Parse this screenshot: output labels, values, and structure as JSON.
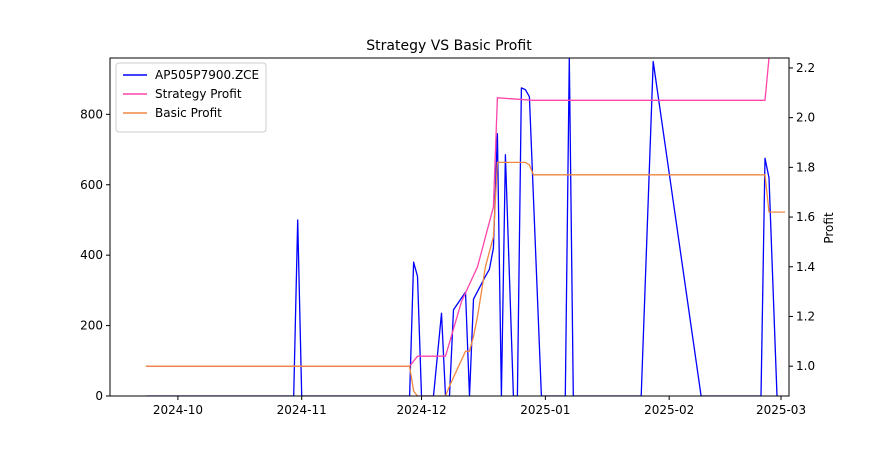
{
  "chart_data": {
    "type": "line",
    "title": "Strategy VS Basic Profit",
    "xlabel": "",
    "ylabel_left": "",
    "ylabel_right": "Profit",
    "x_ticks": [
      "2024-10",
      "2024-11",
      "2024-12",
      "2025-01",
      "2025-02",
      "2025-03"
    ],
    "x_tick_dates": [
      "2024-10-01",
      "2024-11-01",
      "2024-12-01",
      "2025-01-01",
      "2025-02-01",
      "2025-03-01"
    ],
    "xlim": [
      "2024-09-14",
      "2025-03-03"
    ],
    "y_left_ticks": [
      "0",
      "200",
      "400",
      "600",
      "800"
    ],
    "y_left_lim": [
      0,
      960
    ],
    "y_right_ticks": [
      "1.0",
      "1.2",
      "1.4",
      "1.6",
      "1.8",
      "2.0",
      "2.2"
    ],
    "y_right_lim": [
      0.88,
      2.24
    ],
    "grid": false,
    "legend_position": "top-left",
    "colors": {
      "AP505P7900.ZCE": "#0000ff",
      "Strategy Profit": "#ff44aa",
      "Basic Profit": "#f08840"
    },
    "series": [
      {
        "name": "AP505P7900.ZCE",
        "axis": "left",
        "color": "#0000ff",
        "x": [
          "2024-09-23",
          "2024-10-30",
          "2024-10-31",
          "2024-11-01",
          "2024-11-28",
          "2024-11-29",
          "2024-11-30",
          "2024-12-01",
          "2024-12-04",
          "2024-12-06",
          "2024-12-07",
          "2024-12-08",
          "2024-12-09",
          "2024-12-12",
          "2024-12-13",
          "2024-12-14",
          "2024-12-17",
          "2024-12-18",
          "2024-12-19",
          "2024-12-20",
          "2024-12-21",
          "2024-12-22",
          "2024-12-24",
          "2024-12-25",
          "2024-12-26",
          "2024-12-27",
          "2024-12-28",
          "2024-12-31",
          "2025-01-06",
          "2025-01-07",
          "2025-01-08",
          "2025-01-25",
          "2025-01-28",
          "2025-02-09",
          "2025-02-24",
          "2025-02-25",
          "2025-02-26",
          "2025-02-28"
        ],
        "values": [
          0,
          0,
          500,
          0,
          0,
          380,
          340,
          0,
          0,
          235,
          0,
          0,
          245,
          295,
          0,
          275,
          340,
          360,
          420,
          745,
          0,
          685,
          0,
          0,
          875,
          870,
          850,
          0,
          0,
          960,
          0,
          0,
          950,
          0,
          0,
          675,
          620,
          0
        ]
      },
      {
        "name": "Strategy Profit",
        "axis": "right",
        "color": "#ff44aa",
        "x": [
          "2024-09-23",
          "2024-11-28",
          "2024-11-30",
          "2024-12-07",
          "2024-12-11",
          "2024-12-15",
          "2024-12-19",
          "2024-12-20",
          "2024-12-29",
          "2025-02-25",
          "2025-02-26"
        ],
        "values": [
          1.0,
          1.0,
          1.04,
          1.04,
          1.26,
          1.4,
          1.64,
          2.08,
          2.07,
          2.07,
          2.24
        ]
      },
      {
        "name": "Basic Profit",
        "axis": "right",
        "color": "#f08840",
        "x": [
          "2024-09-23",
          "2024-11-28",
          "2024-11-29",
          "2024-11-30",
          "2024-12-07",
          "2024-12-08",
          "2024-12-12",
          "2024-12-13",
          "2024-12-14",
          "2024-12-15",
          "2024-12-16",
          "2024-12-17",
          "2024-12-19",
          "2024-12-20",
          "2024-12-21",
          "2024-12-27",
          "2024-12-28",
          "2024-12-29",
          "2025-02-25",
          "2025-02-26",
          "2025-03-02"
        ],
        "values": [
          1.0,
          1.0,
          0.9,
          0.88,
          0.88,
          0.92,
          1.06,
          1.06,
          1.12,
          1.2,
          1.3,
          1.4,
          1.52,
          1.82,
          1.82,
          1.82,
          1.81,
          1.77,
          1.77,
          1.62,
          1.62
        ]
      }
    ]
  }
}
